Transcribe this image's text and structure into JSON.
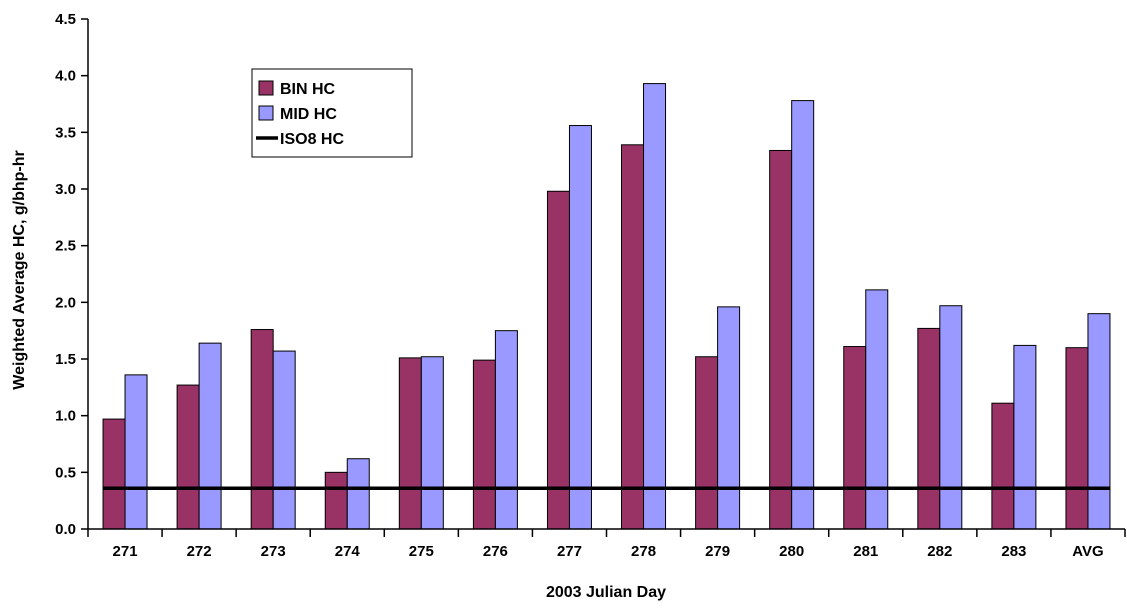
{
  "chart_data": {
    "type": "bar",
    "title": "",
    "xlabel": "2003 Julian Day",
    "ylabel": "Weighted Average HC, g/bhp-hr",
    "categories": [
      "271",
      "272",
      "273",
      "274",
      "275",
      "276",
      "277",
      "278",
      "279",
      "280",
      "281",
      "282",
      "283",
      "AVG"
    ],
    "series": [
      {
        "name": "BIN HC",
        "kind": "bar",
        "color": "#993366",
        "values": [
          0.97,
          1.27,
          1.76,
          0.5,
          1.51,
          1.49,
          2.98,
          3.39,
          1.52,
          3.34,
          1.61,
          1.77,
          1.11,
          1.6
        ]
      },
      {
        "name": "MID HC",
        "kind": "bar",
        "color": "#9999FF",
        "values": [
          1.36,
          1.64,
          1.57,
          0.62,
          1.52,
          1.75,
          3.56,
          3.93,
          1.96,
          3.78,
          2.11,
          1.97,
          1.62,
          1.9
        ]
      },
      {
        "name": "ISO8 HC",
        "kind": "line",
        "color": "#000000",
        "values": [
          0.36,
          0.36,
          0.36,
          0.36,
          0.36,
          0.36,
          0.36,
          0.36,
          0.36,
          0.36,
          0.36,
          0.36,
          0.36,
          0.36
        ]
      }
    ],
    "ylim": [
      0,
      4.5
    ],
    "yticks": [
      "0.0",
      "0.5",
      "1.0",
      "1.5",
      "2.0",
      "2.5",
      "3.0",
      "3.5",
      "4.0",
      "4.5"
    ],
    "grid": false,
    "legend_position": "top-left"
  }
}
